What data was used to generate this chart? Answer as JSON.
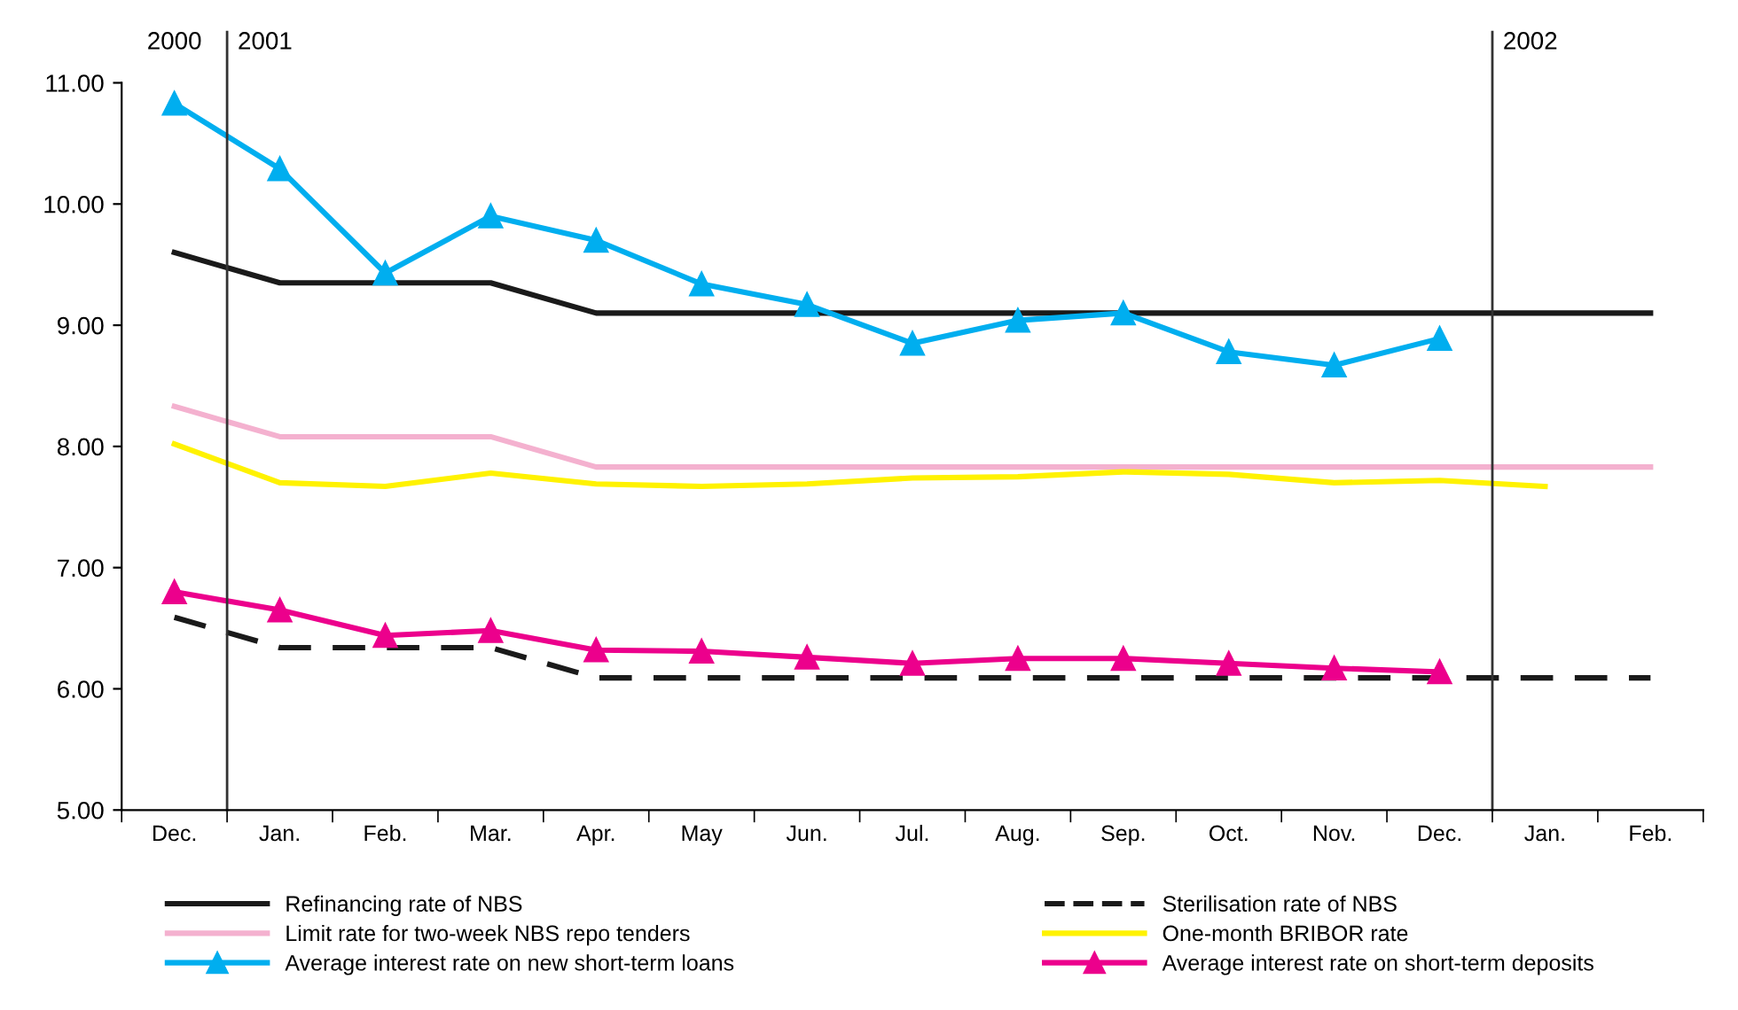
{
  "chart_data": {
    "type": "line",
    "categories": [
      "Dec.",
      "Jan.",
      "Feb.",
      "Mar.",
      "Apr.",
      "May",
      "Jun.",
      "Jul.",
      "Aug.",
      "Sep.",
      "Oct.",
      "Nov.",
      "Dec.",
      "Jan.",
      "Feb."
    ],
    "series": [
      {
        "name": "Refinancing rate of NBS",
        "color": "#1a1a1a",
        "line_style": "solid",
        "marker": "none",
        "values": [
          9.6,
          9.35,
          9.35,
          9.35,
          9.1,
          9.1,
          9.1,
          9.1,
          9.1,
          9.1,
          9.1,
          9.1,
          9.1,
          9.1,
          9.1
        ]
      },
      {
        "name": "Sterilisation rate of NBS",
        "color": "#1a1a1a",
        "line_style": "dashed",
        "marker": "none",
        "values": [
          6.59,
          6.34,
          6.34,
          6.34,
          6.09,
          6.09,
          6.09,
          6.09,
          6.09,
          6.09,
          6.09,
          6.09,
          6.09,
          6.09,
          6.09
        ]
      },
      {
        "name": "Limit rate for two-week NBS repo tenders",
        "color": "#f4b1cf",
        "line_style": "solid",
        "marker": "none",
        "values": [
          8.33,
          8.08,
          8.08,
          8.08,
          7.83,
          7.83,
          7.83,
          7.83,
          7.83,
          7.83,
          7.83,
          7.83,
          7.83,
          7.83,
          7.83
        ]
      },
      {
        "name": "One-month BRIBOR rate",
        "color": "#fff200",
        "line_style": "solid",
        "marker": "none",
        "values": [
          8.02,
          7.7,
          7.67,
          7.78,
          7.69,
          7.67,
          7.69,
          7.74,
          7.75,
          7.79,
          7.77,
          7.7,
          7.72,
          7.67,
          null
        ]
      },
      {
        "name": "Average interest rate on new short-term loans",
        "color": "#00aeef",
        "line_style": "solid",
        "marker": "triangle",
        "values": [
          10.83,
          10.29,
          9.43,
          9.9,
          9.7,
          9.34,
          9.17,
          8.85,
          9.04,
          9.1,
          8.78,
          8.67,
          8.89,
          null,
          null
        ]
      },
      {
        "name": "Average interest rate on short-term deposits",
        "color": "#ec008c",
        "line_style": "solid",
        "marker": "triangle",
        "values": [
          6.8,
          6.65,
          6.44,
          6.48,
          6.32,
          6.31,
          6.26,
          6.21,
          6.25,
          6.25,
          6.21,
          6.17,
          6.14,
          null,
          null
        ]
      }
    ],
    "ylim": [
      5,
      11
    ],
    "yticks": [
      {
        "value": 5,
        "label": "5.00"
      },
      {
        "value": 6,
        "label": "6.00"
      },
      {
        "value": 7,
        "label": "7.00"
      },
      {
        "value": 8,
        "label": "8.00"
      },
      {
        "value": 9,
        "label": "9.00"
      },
      {
        "value": 10,
        "label": "10.00"
      },
      {
        "value": 11,
        "label": "11.00"
      }
    ],
    "annotations": [
      "2000",
      "2001",
      "2002"
    ],
    "grid": false,
    "legend": "bottom"
  }
}
